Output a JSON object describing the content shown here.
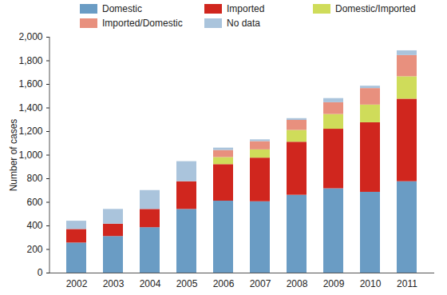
{
  "chart_data": {
    "type": "bar",
    "stacked": true,
    "legend": "top",
    "y_label": "Number of cases",
    "categories": [
      "2002",
      "2003",
      "2004",
      "2005",
      "2006",
      "2007",
      "2008",
      "2009",
      "2010",
      "2011"
    ],
    "series": [
      {
        "name": "Domestic",
        "color": "#6a9cc4",
        "values": [
          255,
          310,
          385,
          540,
          610,
          605,
          660,
          715,
          685,
          775
        ]
      },
      {
        "name": "Imported",
        "color": "#d0261e",
        "values": [
          115,
          105,
          155,
          235,
          310,
          370,
          450,
          505,
          590,
          700
        ]
      },
      {
        "name": "Domestic/Imported",
        "color": "#cfdc5a",
        "values": [
          0,
          0,
          0,
          0,
          60,
          70,
          100,
          125,
          150,
          190
        ]
      },
      {
        "name": "Imported/Domestic",
        "color": "#e8907e",
        "values": [
          0,
          0,
          0,
          0,
          60,
          70,
          85,
          100,
          140,
          180
        ]
      },
      {
        "name": "No data",
        "color": "#aac4dc",
        "values": [
          70,
          125,
          160,
          170,
          20,
          15,
          15,
          35,
          20,
          40
        ]
      }
    ],
    "ylim": [
      0,
      2000
    ],
    "yticks": [
      0,
      200,
      400,
      600,
      800,
      1000,
      1200,
      1400,
      1600,
      1800,
      2000
    ]
  }
}
